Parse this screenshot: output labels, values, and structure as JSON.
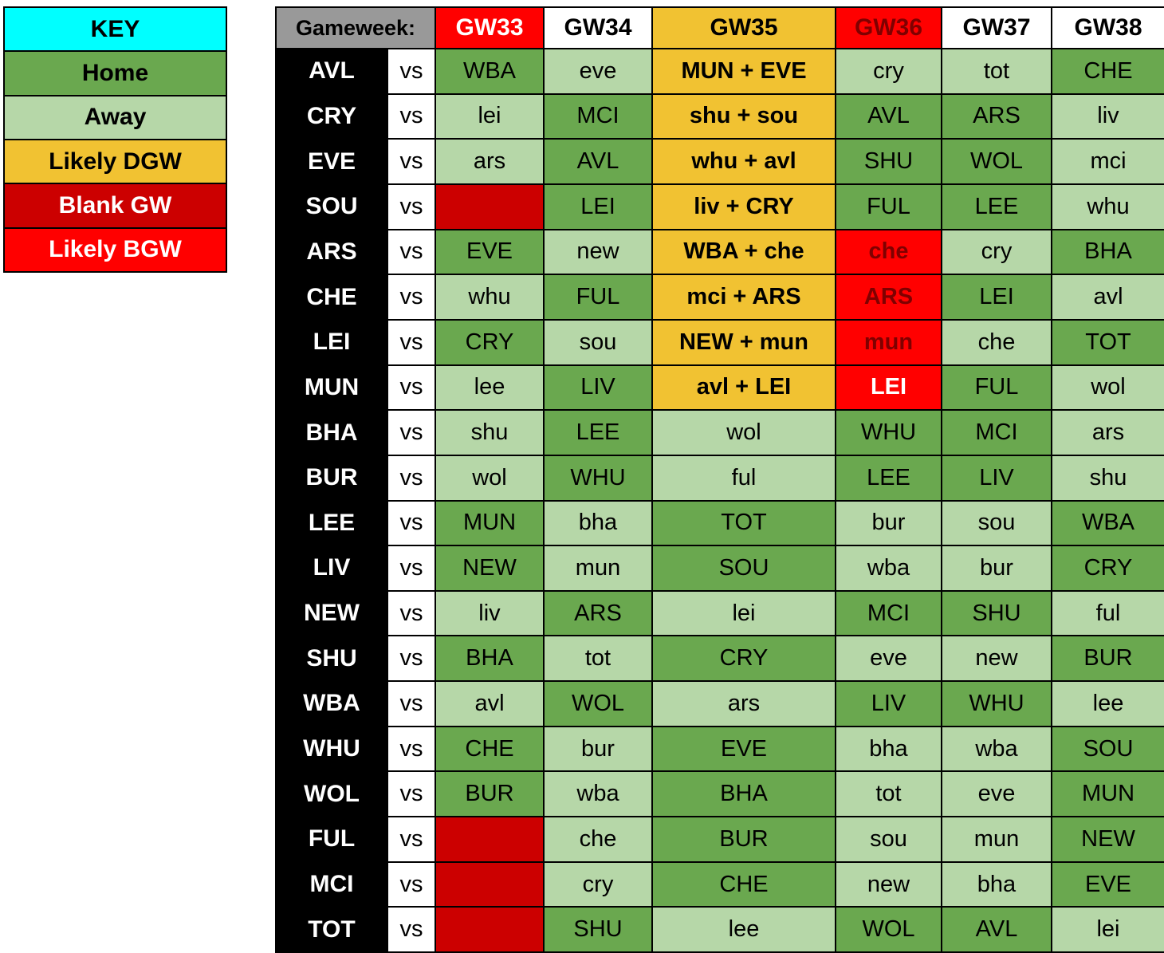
{
  "colors": {
    "home": "#6aa84f",
    "away": "#b6d7a8",
    "dgw": "#f1c232",
    "blank": "#cc0000",
    "bgw": "#ff0000",
    "key_title_bg": "#00ffff",
    "header_label_bg": "#999999",
    "team_bg": "#000000"
  },
  "key": {
    "title": "KEY",
    "items": [
      {
        "label": "Home",
        "type": "home",
        "text_color": "#000000"
      },
      {
        "label": "Away",
        "type": "away",
        "text_color": "#000000"
      },
      {
        "label": "Likely DGW",
        "type": "dgw",
        "text_color": "#000000"
      },
      {
        "label": "Blank GW",
        "type": "blank",
        "text_color": "#ffffff"
      },
      {
        "label": "Likely BGW",
        "type": "bgw",
        "text_color": "#ffffff"
      }
    ]
  },
  "chart_data": {
    "type": "table",
    "header_label": "Gameweek:",
    "vs_label": "vs",
    "columns": [
      {
        "label": "GW33",
        "bg": "#ff0000",
        "text": "#ffffff"
      },
      {
        "label": "GW34",
        "bg": "#ffffff",
        "text": "#000000"
      },
      {
        "label": "GW35",
        "bg": "#f1c232",
        "text": "#000000"
      },
      {
        "label": "GW36",
        "bg": "#ff0000",
        "text": "#7f0000"
      },
      {
        "label": "GW37",
        "bg": "#ffffff",
        "text": "#000000"
      },
      {
        "label": "GW38",
        "bg": "#ffffff",
        "text": "#000000"
      }
    ],
    "rows": [
      {
        "team": "AVL",
        "fixtures": [
          {
            "label": "WBA",
            "type": "home"
          },
          {
            "label": "eve",
            "type": "away"
          },
          {
            "label": "MUN + EVE",
            "type": "dgw"
          },
          {
            "label": "cry",
            "type": "away"
          },
          {
            "label": "tot",
            "type": "away"
          },
          {
            "label": "CHE",
            "type": "home"
          }
        ]
      },
      {
        "team": "CRY",
        "fixtures": [
          {
            "label": "lei",
            "type": "away"
          },
          {
            "label": "MCI",
            "type": "home"
          },
          {
            "label": "shu + sou",
            "type": "dgw"
          },
          {
            "label": "AVL",
            "type": "home"
          },
          {
            "label": "ARS",
            "type": "home"
          },
          {
            "label": "liv",
            "type": "away"
          }
        ]
      },
      {
        "team": "EVE",
        "fixtures": [
          {
            "label": "ars",
            "type": "away"
          },
          {
            "label": "AVL",
            "type": "home"
          },
          {
            "label": "whu + avl",
            "type": "dgw"
          },
          {
            "label": "SHU",
            "type": "home"
          },
          {
            "label": "WOL",
            "type": "home"
          },
          {
            "label": "mci",
            "type": "away"
          }
        ]
      },
      {
        "team": "SOU",
        "fixtures": [
          {
            "label": "",
            "type": "blank"
          },
          {
            "label": "LEI",
            "type": "home"
          },
          {
            "label": "liv + CRY",
            "type": "dgw"
          },
          {
            "label": "FUL",
            "type": "home"
          },
          {
            "label": "LEE",
            "type": "home"
          },
          {
            "label": "whu",
            "type": "away"
          }
        ]
      },
      {
        "team": "ARS",
        "fixtures": [
          {
            "label": "EVE",
            "type": "home"
          },
          {
            "label": "new",
            "type": "away"
          },
          {
            "label": "WBA + che",
            "type": "dgw"
          },
          {
            "label": "che",
            "type": "bgw",
            "text": "#7f0000"
          },
          {
            "label": "cry",
            "type": "away"
          },
          {
            "label": "BHA",
            "type": "home"
          }
        ]
      },
      {
        "team": "CHE",
        "fixtures": [
          {
            "label": "whu",
            "type": "away"
          },
          {
            "label": "FUL",
            "type": "home"
          },
          {
            "label": "mci + ARS",
            "type": "dgw"
          },
          {
            "label": "ARS",
            "type": "bgw",
            "text": "#7f0000"
          },
          {
            "label": "LEI",
            "type": "home"
          },
          {
            "label": "avl",
            "type": "away"
          }
        ]
      },
      {
        "team": "LEI",
        "fixtures": [
          {
            "label": "CRY",
            "type": "home"
          },
          {
            "label": "sou",
            "type": "away"
          },
          {
            "label": "NEW + mun",
            "type": "dgw"
          },
          {
            "label": "mun",
            "type": "bgw",
            "text": "#7f0000"
          },
          {
            "label": "che",
            "type": "away"
          },
          {
            "label": "TOT",
            "type": "home"
          }
        ]
      },
      {
        "team": "MUN",
        "fixtures": [
          {
            "label": "lee",
            "type": "away"
          },
          {
            "label": "LIV",
            "type": "home"
          },
          {
            "label": "avl + LEI",
            "type": "dgw"
          },
          {
            "label": "LEI",
            "type": "bgw",
            "text": "#ffffff"
          },
          {
            "label": "FUL",
            "type": "home"
          },
          {
            "label": "wol",
            "type": "away"
          }
        ]
      },
      {
        "team": "BHA",
        "fixtures": [
          {
            "label": "shu",
            "type": "away"
          },
          {
            "label": "LEE",
            "type": "home"
          },
          {
            "label": "wol",
            "type": "away"
          },
          {
            "label": "WHU",
            "type": "home"
          },
          {
            "label": "MCI",
            "type": "home"
          },
          {
            "label": "ars",
            "type": "away"
          }
        ]
      },
      {
        "team": "BUR",
        "fixtures": [
          {
            "label": "wol",
            "type": "away"
          },
          {
            "label": "WHU",
            "type": "home"
          },
          {
            "label": "ful",
            "type": "away"
          },
          {
            "label": "LEE",
            "type": "home"
          },
          {
            "label": "LIV",
            "type": "home"
          },
          {
            "label": "shu",
            "type": "away"
          }
        ]
      },
      {
        "team": "LEE",
        "fixtures": [
          {
            "label": "MUN",
            "type": "home"
          },
          {
            "label": "bha",
            "type": "away"
          },
          {
            "label": "TOT",
            "type": "home"
          },
          {
            "label": "bur",
            "type": "away"
          },
          {
            "label": "sou",
            "type": "away"
          },
          {
            "label": "WBA",
            "type": "home"
          }
        ]
      },
      {
        "team": "LIV",
        "fixtures": [
          {
            "label": "NEW",
            "type": "home"
          },
          {
            "label": "mun",
            "type": "away"
          },
          {
            "label": "SOU",
            "type": "home"
          },
          {
            "label": "wba",
            "type": "away"
          },
          {
            "label": "bur",
            "type": "away"
          },
          {
            "label": "CRY",
            "type": "home"
          }
        ]
      },
      {
        "team": "NEW",
        "fixtures": [
          {
            "label": "liv",
            "type": "away"
          },
          {
            "label": "ARS",
            "type": "home"
          },
          {
            "label": "lei",
            "type": "away"
          },
          {
            "label": "MCI",
            "type": "home"
          },
          {
            "label": "SHU",
            "type": "home"
          },
          {
            "label": "ful",
            "type": "away"
          }
        ]
      },
      {
        "team": "SHU",
        "fixtures": [
          {
            "label": "BHA",
            "type": "home"
          },
          {
            "label": "tot",
            "type": "away"
          },
          {
            "label": "CRY",
            "type": "home"
          },
          {
            "label": "eve",
            "type": "away"
          },
          {
            "label": "new",
            "type": "away"
          },
          {
            "label": "BUR",
            "type": "home"
          }
        ]
      },
      {
        "team": "WBA",
        "fixtures": [
          {
            "label": "avl",
            "type": "away"
          },
          {
            "label": "WOL",
            "type": "home"
          },
          {
            "label": "ars",
            "type": "away"
          },
          {
            "label": "LIV",
            "type": "home"
          },
          {
            "label": "WHU",
            "type": "home"
          },
          {
            "label": "lee",
            "type": "away"
          }
        ]
      },
      {
        "team": "WHU",
        "fixtures": [
          {
            "label": "CHE",
            "type": "home"
          },
          {
            "label": "bur",
            "type": "away"
          },
          {
            "label": "EVE",
            "type": "home"
          },
          {
            "label": "bha",
            "type": "away"
          },
          {
            "label": "wba",
            "type": "away"
          },
          {
            "label": "SOU",
            "type": "home"
          }
        ]
      },
      {
        "team": "WOL",
        "fixtures": [
          {
            "label": "BUR",
            "type": "home"
          },
          {
            "label": "wba",
            "type": "away"
          },
          {
            "label": "BHA",
            "type": "home"
          },
          {
            "label": "tot",
            "type": "away"
          },
          {
            "label": "eve",
            "type": "away"
          },
          {
            "label": "MUN",
            "type": "home"
          }
        ]
      },
      {
        "team": "FUL",
        "fixtures": [
          {
            "label": "",
            "type": "blank"
          },
          {
            "label": "che",
            "type": "away"
          },
          {
            "label": "BUR",
            "type": "home"
          },
          {
            "label": "sou",
            "type": "away"
          },
          {
            "label": "mun",
            "type": "away"
          },
          {
            "label": "NEW",
            "type": "home"
          }
        ]
      },
      {
        "team": "MCI",
        "fixtures": [
          {
            "label": "",
            "type": "blank"
          },
          {
            "label": "cry",
            "type": "away"
          },
          {
            "label": "CHE",
            "type": "home"
          },
          {
            "label": "new",
            "type": "away"
          },
          {
            "label": "bha",
            "type": "away"
          },
          {
            "label": "EVE",
            "type": "home"
          }
        ]
      },
      {
        "team": "TOT",
        "fixtures": [
          {
            "label": "",
            "type": "blank"
          },
          {
            "label": "SHU",
            "type": "home"
          },
          {
            "label": "lee",
            "type": "away"
          },
          {
            "label": "WOL",
            "type": "home"
          },
          {
            "label": "AVL",
            "type": "home"
          },
          {
            "label": "lei",
            "type": "away"
          }
        ]
      }
    ]
  }
}
